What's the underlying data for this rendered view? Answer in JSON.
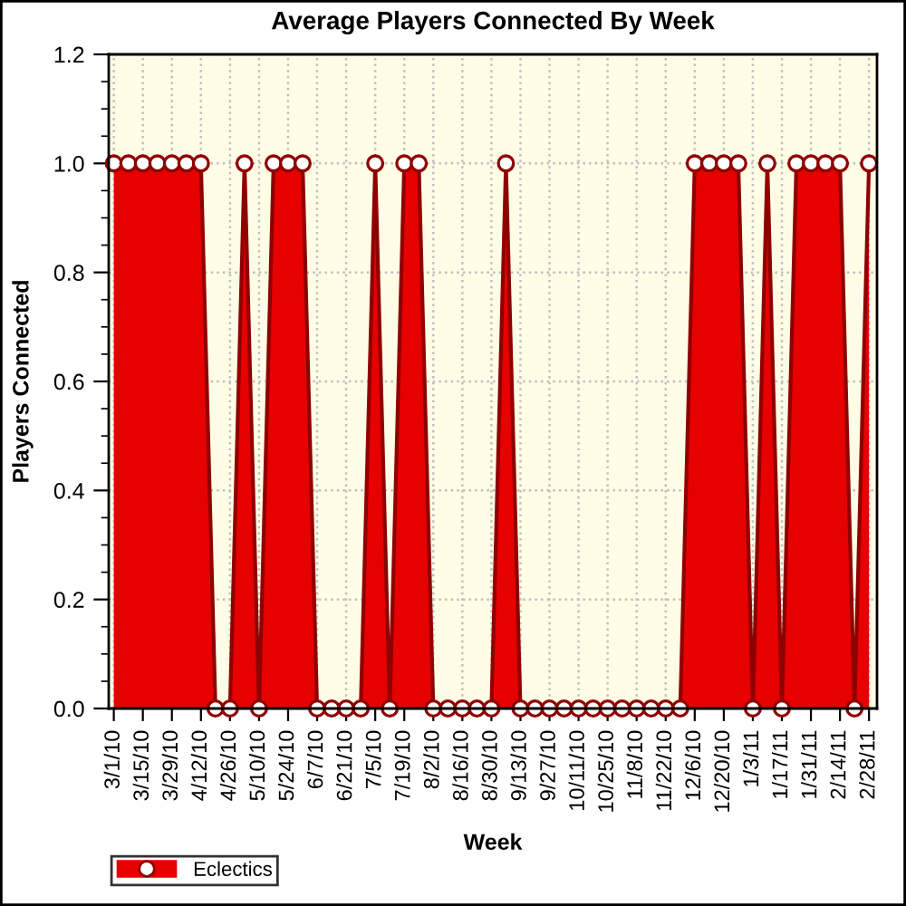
{
  "chart_data": {
    "type": "area",
    "title": "Average Players Connected By Week",
    "xlabel": "Week",
    "ylabel": "Players Connected",
    "categories": [
      "3/1/10",
      null,
      "3/15/10",
      null,
      "3/29/10",
      null,
      "4/12/10",
      null,
      "4/26/10",
      null,
      "5/10/10",
      null,
      "5/24/10",
      null,
      "6/7/10",
      null,
      "6/21/10",
      null,
      "7/5/10",
      null,
      "7/19/10",
      null,
      "8/2/10",
      null,
      "8/16/10",
      null,
      "8/30/10",
      null,
      "9/13/10",
      null,
      "9/27/10",
      null,
      "10/11/10",
      null,
      "10/25/10",
      null,
      "11/8/10",
      null,
      "11/22/10",
      null,
      "12/6/10",
      null,
      "12/20/10",
      null,
      "1/3/11",
      null,
      "1/17/11",
      null,
      "1/31/11",
      null,
      "2/14/11",
      null,
      "2/28/11"
    ],
    "series": [
      {
        "name": "Eclectics",
        "color": "#e60000",
        "values": [
          1,
          1,
          1,
          1,
          1,
          1,
          1,
          0,
          0,
          1,
          0,
          1,
          1,
          1,
          0,
          0,
          0,
          0,
          1,
          0,
          1,
          1,
          0,
          0,
          0,
          0,
          0,
          1,
          0,
          0,
          0,
          0,
          0,
          0,
          0,
          0,
          0,
          0,
          0,
          0,
          1,
          1,
          1,
          1,
          0,
          1,
          0,
          1,
          1,
          1,
          1,
          0,
          1
        ]
      }
    ],
    "ylim": [
      0,
      1.2
    ],
    "yticks": [
      {
        "value": 0,
        "label": "0.0"
      },
      {
        "value": 0.05,
        "label": null
      },
      {
        "value": 0.1,
        "label": null
      },
      {
        "value": 0.15,
        "label": null
      },
      {
        "value": 0.2,
        "label": "0.2"
      },
      {
        "value": 0.25,
        "label": null
      },
      {
        "value": 0.3,
        "label": null
      },
      {
        "value": 0.35,
        "label": null
      },
      {
        "value": 0.4,
        "label": "0.4"
      },
      {
        "value": 0.45,
        "label": null
      },
      {
        "value": 0.5,
        "label": null
      },
      {
        "value": 0.55,
        "label": null
      },
      {
        "value": 0.6,
        "label": "0.6"
      },
      {
        "value": 0.65,
        "label": null
      },
      {
        "value": 0.7,
        "label": null
      },
      {
        "value": 0.75,
        "label": null
      },
      {
        "value": 0.8,
        "label": "0.8"
      },
      {
        "value": 0.85,
        "label": null
      },
      {
        "value": 0.9,
        "label": null
      },
      {
        "value": 0.95,
        "label": null
      },
      {
        "value": 1,
        "label": "1.0"
      },
      {
        "value": 1.05,
        "label": null
      },
      {
        "value": 1.1,
        "label": null
      },
      {
        "value": 1.15,
        "label": null
      },
      {
        "value": 1.2,
        "label": "1.2"
      }
    ],
    "grid": true,
    "legend": "bottom left",
    "marker": "circle",
    "line_style": "solid"
  }
}
